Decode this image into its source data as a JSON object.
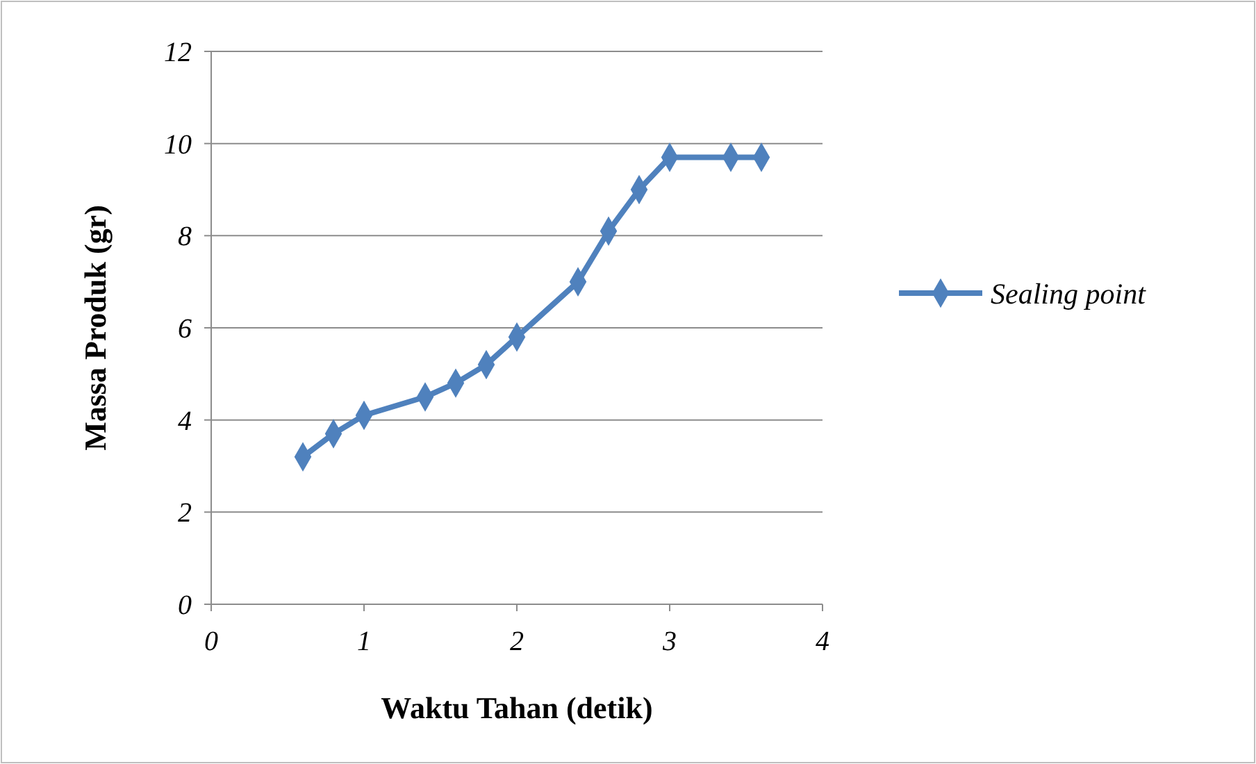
{
  "chart_data": {
    "type": "line",
    "xlabel": "Waktu Tahan (detik)",
    "ylabel": "Massa Produk (gr)",
    "xlim": [
      0,
      4
    ],
    "xticks": [
      0,
      1,
      2,
      3,
      4
    ],
    "ylim": [
      0,
      12
    ],
    "yticks": [
      0,
      2,
      4,
      6,
      8,
      10,
      12
    ],
    "grid": "y",
    "legend": "right",
    "marker": "diamond",
    "line_style": "solid",
    "series": [
      {
        "name": "Sealing point",
        "color": "#4f81bd",
        "x": [
          0.6,
          0.8,
          1.0,
          1.4,
          1.6,
          1.8,
          2.0,
          2.4,
          2.6,
          2.8,
          3.0,
          3.4,
          3.6
        ],
        "values": [
          3.2,
          3.7,
          4.1,
          4.5,
          4.8,
          5.2,
          5.8,
          7.0,
          8.1,
          9.0,
          9.7,
          9.7,
          9.7
        ]
      }
    ]
  }
}
